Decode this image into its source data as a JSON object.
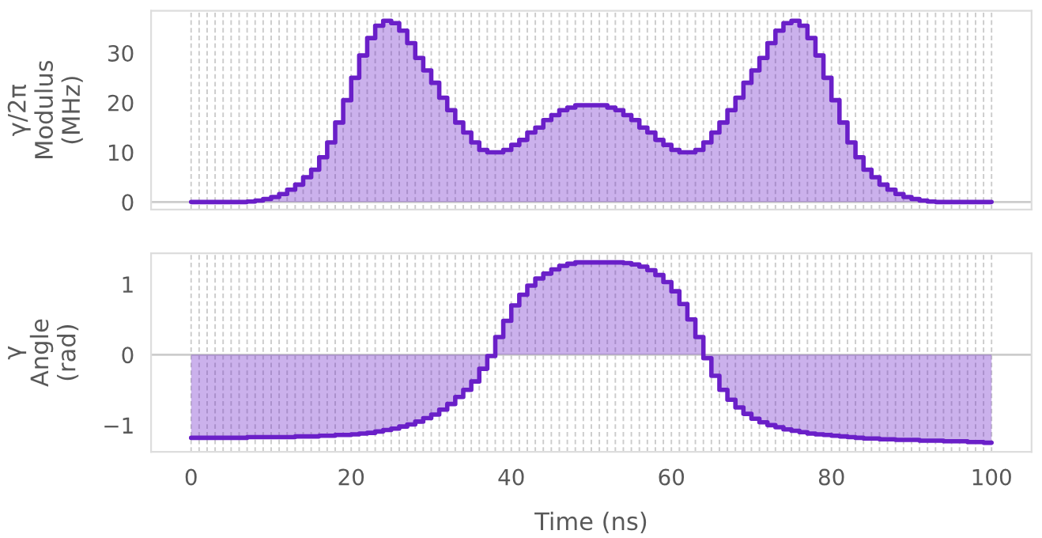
{
  "chart_data": [
    {
      "type": "step",
      "ylabel": "γ/2π\nModulus\n(MHz)",
      "x": [
        0,
        1,
        2,
        3,
        4,
        5,
        6,
        7,
        8,
        9,
        10,
        11,
        12,
        13,
        14,
        15,
        16,
        17,
        18,
        19,
        20,
        21,
        22,
        23,
        24,
        25,
        26,
        27,
        28,
        29,
        30,
        31,
        32,
        33,
        34,
        35,
        36,
        37,
        38,
        39,
        40,
        41,
        42,
        43,
        44,
        45,
        46,
        47,
        48,
        49,
        50,
        51,
        52,
        53,
        54,
        55,
        56,
        57,
        58,
        59,
        60,
        61,
        62,
        63,
        64,
        65,
        66,
        67,
        68,
        69,
        70,
        71,
        72,
        73,
        74,
        75,
        76,
        77,
        78,
        79,
        80,
        81,
        82,
        83,
        84,
        85,
        86,
        87,
        88,
        89,
        90,
        91,
        92,
        93,
        94,
        95,
        96,
        97,
        98,
        99,
        100
      ],
      "series": [
        {
          "color": "#6a1fc8",
          "values": [
            0,
            0,
            0,
            0,
            0,
            0,
            0,
            0.1,
            0.3,
            0.6,
            1,
            1.6,
            2.5,
            3.5,
            5,
            6.5,
            9,
            12,
            16,
            20.5,
            25,
            29.5,
            33,
            35.5,
            36.5,
            36,
            34.5,
            32,
            29,
            26.5,
            24,
            21,
            18.5,
            16,
            14,
            12,
            10.5,
            10,
            10,
            10.5,
            11.5,
            12.5,
            14,
            15,
            16.5,
            17.5,
            18.5,
            19,
            19.5,
            19.5,
            19.5,
            19.5,
            19,
            18.5,
            17.5,
            16.5,
            15,
            14,
            12.5,
            11.5,
            10.5,
            10,
            10,
            10.5,
            12,
            14,
            16,
            18.5,
            21,
            24,
            26.5,
            29,
            32,
            34.5,
            36,
            36.5,
            35.5,
            33,
            29.5,
            25,
            20.5,
            16,
            12,
            9,
            6.5,
            5,
            3.5,
            2.5,
            1.6,
            1,
            0.6,
            0.3,
            0.1,
            0,
            0,
            0,
            0,
            0,
            0,
            0,
            0
          ]
        }
      ],
      "xlim": [
        -5,
        105
      ],
      "xticks": [
        0,
        20,
        40,
        60,
        80,
        100
      ],
      "ylim": [
        -1.5,
        38.5
      ],
      "yticks": [
        0,
        10,
        20,
        30
      ],
      "tick_labels": "y",
      "grid": "x",
      "ref_lines": [
        {
          "axis": "y",
          "value": 0,
          "color": "#cccccc"
        }
      ]
    },
    {
      "type": "step",
      "ylabel": "γ\nAngle\n(rad)",
      "xlabel": "Time (ns)",
      "x": [
        0,
        1,
        2,
        3,
        4,
        5,
        6,
        7,
        8,
        9,
        10,
        11,
        12,
        13,
        14,
        15,
        16,
        17,
        18,
        19,
        20,
        21,
        22,
        23,
        24,
        25,
        26,
        27,
        28,
        29,
        30,
        31,
        32,
        33,
        34,
        35,
        36,
        37,
        38,
        39,
        40,
        41,
        42,
        43,
        44,
        45,
        46,
        47,
        48,
        49,
        50,
        51,
        52,
        53,
        54,
        55,
        56,
        57,
        58,
        59,
        60,
        61,
        62,
        63,
        64,
        65,
        66,
        67,
        68,
        69,
        70,
        71,
        72,
        73,
        74,
        75,
        76,
        77,
        78,
        79,
        80,
        81,
        82,
        83,
        84,
        85,
        86,
        87,
        88,
        89,
        90,
        91,
        92,
        93,
        94,
        95,
        96,
        97,
        98,
        99,
        100
      ],
      "series": [
        {
          "color": "#6a1fc8",
          "values": [
            -1.18,
            -1.18,
            -1.18,
            -1.18,
            -1.18,
            -1.18,
            -1.18,
            -1.17,
            -1.17,
            -1.17,
            -1.17,
            -1.17,
            -1.17,
            -1.16,
            -1.16,
            -1.16,
            -1.15,
            -1.15,
            -1.14,
            -1.14,
            -1.13,
            -1.12,
            -1.11,
            -1.09,
            -1.07,
            -1.05,
            -1.02,
            -0.99,
            -0.95,
            -0.9,
            -0.85,
            -0.78,
            -0.7,
            -0.6,
            -0.5,
            -0.38,
            -0.2,
            -0.02,
            0.25,
            0.48,
            0.7,
            0.85,
            0.98,
            1.08,
            1.15,
            1.21,
            1.26,
            1.29,
            1.31,
            1.31,
            1.31,
            1.31,
            1.31,
            1.31,
            1.3,
            1.28,
            1.25,
            1.2,
            1.13,
            1.03,
            0.9,
            0.72,
            0.5,
            0.25,
            -0.05,
            -0.3,
            -0.5,
            -0.64,
            -0.75,
            -0.84,
            -0.91,
            -0.96,
            -1.0,
            -1.03,
            -1.06,
            -1.08,
            -1.1,
            -1.12,
            -1.13,
            -1.14,
            -1.15,
            -1.16,
            -1.17,
            -1.18,
            -1.19,
            -1.19,
            -1.2,
            -1.2,
            -1.21,
            -1.21,
            -1.21,
            -1.22,
            -1.22,
            -1.22,
            -1.23,
            -1.23,
            -1.23,
            -1.24,
            -1.24,
            -1.25,
            -1.25
          ]
        }
      ],
      "xlim": [
        -5,
        105
      ],
      "xticks": [
        0,
        20,
        40,
        60,
        80,
        100
      ],
      "ylim": [
        -1.38,
        1.44
      ],
      "yticks": [
        {
          "value": -1,
          "label": "−1"
        },
        0,
        1
      ],
      "grid": "x",
      "ref_lines": [
        {
          "axis": "y",
          "value": 0,
          "color": "#cccccc"
        }
      ]
    }
  ]
}
